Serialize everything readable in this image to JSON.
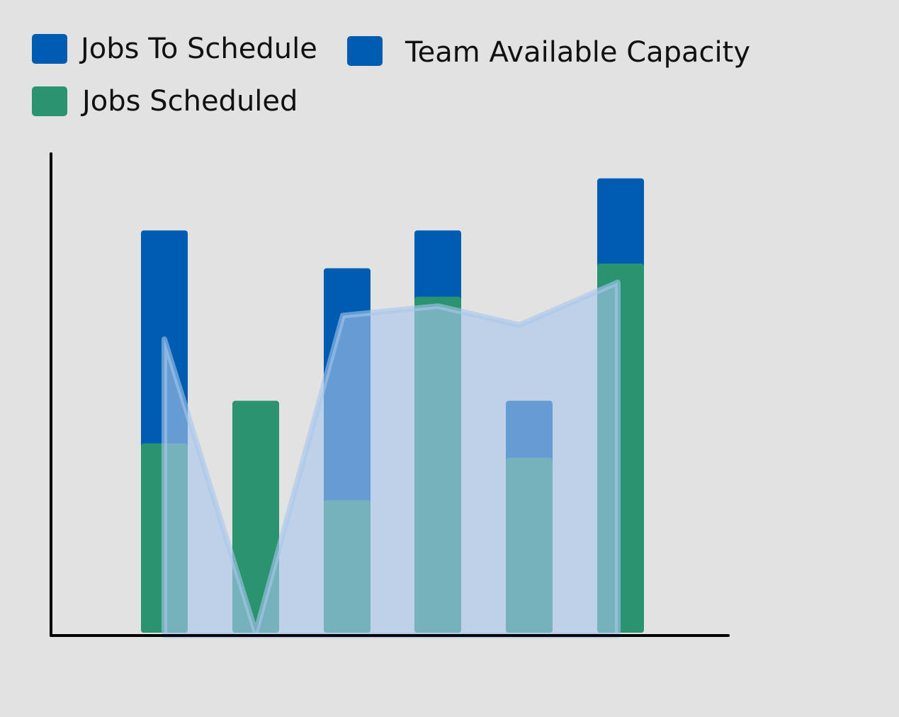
{
  "legend": [
    {
      "label": "Jobs To Schedule",
      "color": "#005cb0"
    },
    {
      "label": "Team Available Capacity",
      "color": "#005cb0"
    },
    {
      "label": "Jobs Scheduled",
      "color": "#2a9470"
    }
  ],
  "chart_data": {
    "type": "bar",
    "title": "",
    "xlabel": "",
    "ylabel": "",
    "ylim": [
      0,
      10
    ],
    "grid": false,
    "legend_position": "top-left",
    "categories": [
      "",
      "",
      "",
      "",
      "",
      ""
    ],
    "series": [
      {
        "name": "Jobs To Schedule",
        "kind": "bar",
        "values": [
          8.5,
          0,
          7.7,
          8.5,
          4.9,
          9.6
        ],
        "color": "#005cb0"
      },
      {
        "name": "Jobs Scheduled",
        "kind": "bar",
        "values": [
          4.0,
          4.9,
          2.8,
          7.1,
          3.7,
          7.8
        ],
        "color": "#2a9470"
      },
      {
        "name": "Team Available Capacity",
        "kind": "area",
        "values": [
          6.2,
          0,
          6.7,
          6.9,
          6.5,
          7.4
        ],
        "color": "#a9c7ec"
      }
    ]
  }
}
